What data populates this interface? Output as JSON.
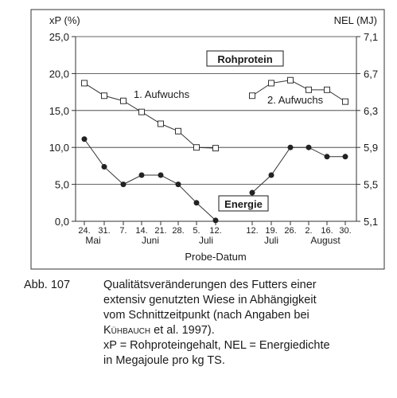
{
  "chart_data": {
    "type": "line",
    "y_left_label": "xP (%)",
    "y_right_label": "NEL (MJ)",
    "xlabel": "Probe-Datum",
    "y_left_ticks": [
      "25,0",
      "20,0",
      "15,0",
      "10,0",
      "5,0",
      "0,0"
    ],
    "y_left_values": [
      25,
      20,
      15,
      10,
      5,
      0
    ],
    "y_right_ticks": [
      "7,1",
      "6,7",
      "6,3",
      "5,9",
      "5,5",
      "5,1"
    ],
    "y_right_values": [
      7.1,
      6.7,
      6.3,
      5.9,
      5.5,
      5.1
    ],
    "ylim_left": [
      0,
      25
    ],
    "ylim_right": [
      5.1,
      7.1
    ],
    "grid": "horizontal",
    "x_day_labels": [
      "24.",
      "31.",
      "7.",
      "14.",
      "21.",
      "28.",
      "5.",
      "12.",
      "12.",
      "19.",
      "26.",
      "2.",
      "16.",
      "30."
    ],
    "x_month_labels": [
      "Mai",
      "Juni",
      "Juli",
      "Juli",
      "August"
    ],
    "box_labels": {
      "protein": "Rohprotein",
      "energy": "Energie"
    },
    "series": [
      {
        "name": "1. Aufwuchs",
        "quantity": "Rohprotein",
        "marker": "open-square",
        "x_index": [
          0,
          1,
          2,
          3,
          4,
          5,
          6,
          7
        ],
        "values": [
          18.7,
          17.0,
          16.3,
          14.8,
          13.2,
          12.2,
          10.0,
          9.9
        ]
      },
      {
        "name": "2. Aufwuchs",
        "quantity": "Rohprotein",
        "marker": "open-square",
        "x_index": [
          8,
          9,
          10,
          11,
          12,
          13
        ],
        "values": [
          17.0,
          18.7,
          19.1,
          17.8,
          17.8,
          16.2
        ]
      },
      {
        "name": "",
        "quantity": "Energie",
        "marker": "filled-circle",
        "x_index": [
          0,
          1,
          2,
          3,
          4,
          5,
          6,
          7
        ],
        "values": [
          5.99,
          5.69,
          5.5,
          5.6,
          5.6,
          5.5,
          5.3,
          5.11
        ]
      },
      {
        "name": "",
        "quantity": "Energie",
        "marker": "filled-circle",
        "x_index": [
          8,
          9,
          10,
          11,
          12,
          13
        ],
        "values": [
          5.41,
          5.6,
          5.9,
          5.9,
          5.8,
          5.8
        ]
      }
    ]
  },
  "caption": {
    "number": "Abb. 107",
    "lines": [
      "Qualitätsveränderungen des Futters einer",
      "extensiv genutzten Wiese in Abhängigkeit",
      "vom Schnittzeitpunkt (nach Angaben bei"
    ],
    "author_smallcaps": "Kühbauch",
    "author_rest": " et al. 1997).",
    "legend_lines": [
      "xP = Rohproteingehalt, NEL = Energiedichte",
      "in Megajoule pro kg TS."
    ]
  }
}
